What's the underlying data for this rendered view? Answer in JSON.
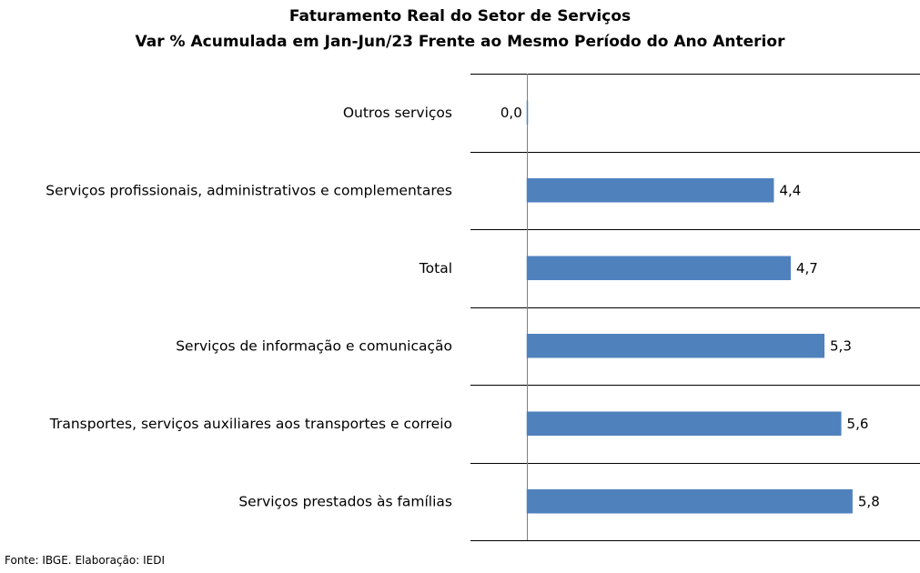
{
  "chart_data": {
    "type": "bar",
    "orientation": "horizontal",
    "title": "Faturamento Real do Setor de Serviços",
    "subtitle": "Var % Acumulada em Jan-Jun/23 Frente ao Mesmo Período do Ano Anterior",
    "categories": [
      "Outros serviços",
      "Serviços profissionais, administrativos e complementares",
      "Total",
      "Serviços de informação e comunicação",
      "Transportes, serviços auxiliares aos transportes e correio",
      "Serviços prestados às famílias"
    ],
    "values": [
      0.0,
      4.4,
      4.7,
      5.3,
      5.6,
      5.8
    ],
    "value_labels": [
      "0,0",
      "4,4",
      "4,7",
      "5,3",
      "5,6",
      "5,8"
    ],
    "xlim": [
      -1,
      7
    ],
    "grid": "horizontal separators",
    "bar_color": "#4F81BD"
  },
  "source": "Fonte: IBGE. Elaboração: IEDI"
}
